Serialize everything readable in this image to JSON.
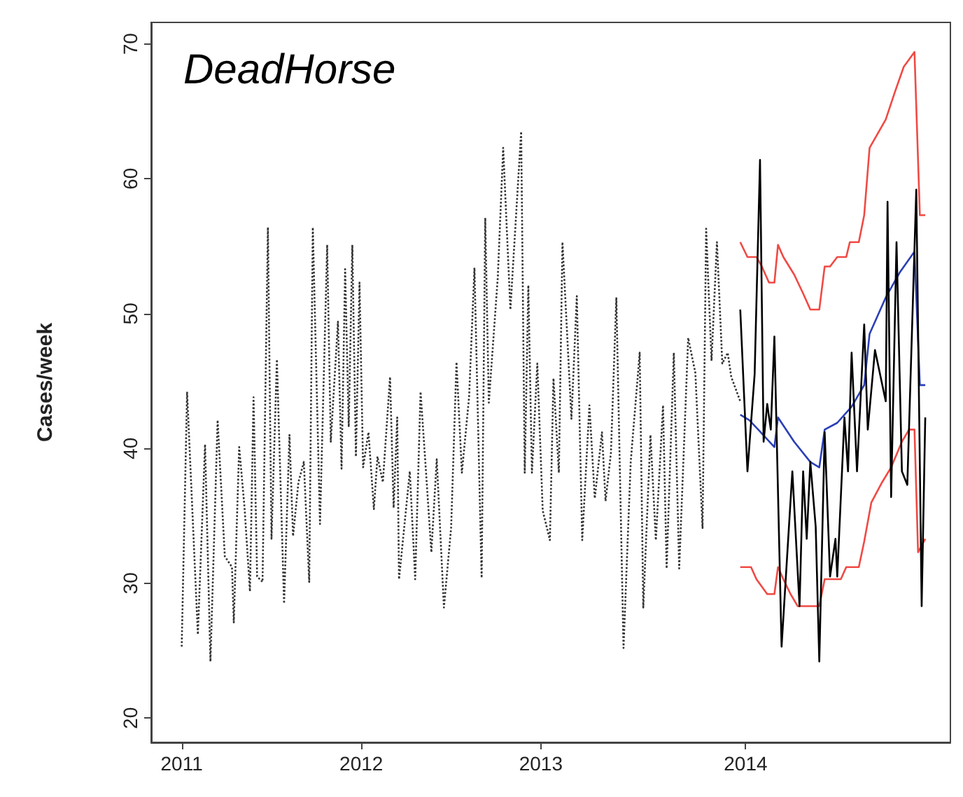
{
  "chart_data": {
    "type": "line",
    "title": "DeadHorse",
    "ylabel": "Cases/week",
    "xlim": [
      2010.83,
      2015.28
    ],
    "ylim": [
      18.2,
      71.6
    ],
    "xticks": [
      {
        "value": 2011,
        "label": "2011"
      },
      {
        "value": 2012,
        "label": "2012"
      },
      {
        "value": 2013,
        "label": "2013"
      },
      {
        "value": 2014.14,
        "label": "2014"
      }
    ],
    "yticks": [
      20,
      30,
      40,
      50,
      60,
      70
    ],
    "series": [
      {
        "color": "#333333",
        "line_style": "dotted",
        "x": [
          2011.0,
          2011.03,
          2011.09,
          2011.13,
          2011.16,
          2011.2,
          2011.24,
          2011.28,
          2011.29,
          2011.32,
          2011.35,
          2011.38,
          2011.4,
          2011.42,
          2011.45,
          2011.48,
          2011.5,
          2011.53,
          2011.57,
          2011.6,
          2011.62,
          2011.65,
          2011.68,
          2011.71,
          2011.73,
          2011.77,
          2011.81,
          2011.83,
          2011.87,
          2011.89,
          2011.91,
          2011.93,
          2011.95,
          2011.97,
          2011.99,
          2012.01,
          2012.04,
          2012.07,
          2012.09,
          2012.12,
          2012.16,
          2012.18,
          2012.2,
          2012.21,
          2012.27,
          2012.3,
          2012.33,
          2012.36,
          2012.39,
          2012.42,
          2012.46,
          2012.5,
          2012.53,
          2012.56,
          2012.6,
          2012.63,
          2012.67,
          2012.69,
          2012.71,
          2012.76,
          2012.79,
          2012.83,
          2012.89,
          2012.91,
          2012.93,
          2012.95,
          2012.98,
          2013.01,
          2013.05,
          2013.07,
          2013.1,
          2013.12,
          2013.17,
          2013.2,
          2013.23,
          2013.27,
          2013.3,
          2013.34,
          2013.36,
          2013.39,
          2013.42,
          2013.46,
          2013.5,
          2013.55,
          2013.57,
          2013.61,
          2013.64,
          2013.68,
          2013.7,
          2013.74,
          2013.77,
          2013.82,
          2013.86,
          2013.9,
          2013.92,
          2013.95,
          2013.98,
          2014.01,
          2014.04,
          2014.06,
          2014.11
        ],
        "values": [
          25.3,
          44.2,
          26.2,
          40.3,
          24.2,
          42.1,
          32,
          31.2,
          27.1,
          40.1,
          35.6,
          29.4,
          43.8,
          30.5,
          30.1,
          56.4,
          33.3,
          46.6,
          28.5,
          41,
          33.5,
          37.5,
          39,
          30.1,
          56.4,
          34.4,
          55.1,
          40.5,
          49.4,
          38.5,
          53.3,
          41.6,
          55.1,
          39.4,
          52.3,
          38.6,
          41.2,
          35.5,
          39.4,
          37.5,
          45.3,
          35.6,
          42.3,
          30.3,
          38.3,
          30.3,
          44.2,
          38.3,
          32.3,
          39.2,
          28.2,
          34.1,
          46.4,
          38.2,
          43.8,
          53.4,
          30.4,
          57.1,
          43.4,
          52.7,
          62.3,
          50.3,
          63.5,
          38.2,
          52.1,
          38.2,
          46.3,
          35.4,
          33.2,
          45.2,
          38.2,
          55.3,
          42.2,
          51.3,
          33.2,
          43.2,
          36.3,
          41.2,
          36.1,
          39.7,
          51.2,
          25.2,
          39,
          47.1,
          28.2,
          41,
          33.2,
          43.2,
          31.1,
          47.1,
          31.1,
          48.2,
          45.6,
          34.1,
          56.3,
          46.5,
          55.3,
          46.3,
          47.1,
          45.3,
          43.5
        ]
      },
      {
        "color": "#f04a44",
        "x": [
          2014.11,
          2014.15,
          2014.2,
          2014.23,
          2014.27,
          2014.3,
          2014.32,
          2014.35,
          2014.41,
          2014.46,
          2014.5,
          2014.55,
          2014.58,
          2014.61,
          2014.65,
          2014.7,
          2014.72,
          2014.77,
          2014.8,
          2014.83,
          2014.92,
          2014.97,
          2015.02,
          2015.08,
          2015.11,
          2015.14
        ],
        "values": [
          55.3,
          54.2,
          54.2,
          53.5,
          52.3,
          52.3,
          55.1,
          54.2,
          52.9,
          51.5,
          50.3,
          50.3,
          53.5,
          53.5,
          54.2,
          54.2,
          55.3,
          55.3,
          57.3,
          62.3,
          64.4,
          66.4,
          68.3,
          69.4,
          57.3,
          57.3
        ]
      },
      {
        "color": "#f04a44",
        "x": [
          2014.11,
          2014.17,
          2014.2,
          2014.26,
          2014.3,
          2014.32,
          2014.35,
          2014.39,
          2014.43,
          2014.55,
          2014.58,
          2014.67,
          2014.7,
          2014.77,
          2014.8,
          2014.84,
          2014.9,
          2014.95,
          2015.01,
          2015.05,
          2015.08,
          2015.1,
          2015.14
        ],
        "values": [
          31.2,
          31.2,
          30.3,
          29.2,
          29.2,
          31.2,
          30.3,
          29.2,
          28.3,
          28.3,
          30.3,
          30.3,
          31.2,
          31.2,
          33.1,
          36,
          37.5,
          38.6,
          40.5,
          41.4,
          41.4,
          32.3,
          33.3
        ]
      },
      {
        "color": "#2b3fb5",
        "x": [
          2014.11,
          2014.16,
          2014.21,
          2014.3,
          2014.32,
          2014.41,
          2014.5,
          2014.55,
          2014.58,
          2014.65,
          2014.73,
          2014.8,
          2014.83,
          2014.92,
          2015.0,
          2015.08,
          2015.11,
          2015.14
        ],
        "values": [
          42.5,
          42.1,
          41.4,
          40.1,
          42.3,
          40.5,
          39,
          38.6,
          41.4,
          41.9,
          43.1,
          44.7,
          48.5,
          51.2,
          53.1,
          54.6,
          44.7,
          44.7
        ]
      },
      {
        "color": "#000000",
        "x": [
          2014.11,
          2014.15,
          2014.19,
          2014.22,
          2014.24,
          2014.26,
          2014.28,
          2014.3,
          2014.34,
          2014.4,
          2014.44,
          2014.46,
          2014.48,
          2014.5,
          2014.53,
          2014.55,
          2014.58,
          2014.61,
          2014.64,
          2014.65,
          2014.69,
          2014.71,
          2014.73,
          2014.76,
          2014.8,
          2014.82,
          2014.86,
          2014.92,
          2014.93,
          2014.95,
          2014.98,
          2015.01,
          2015.04,
          2015.09,
          2015.12,
          2015.14
        ],
        "values": [
          50.3,
          38.3,
          45.5,
          61.4,
          40.5,
          43.3,
          41.4,
          48.3,
          25.3,
          38.3,
          28.3,
          38.3,
          33.3,
          39,
          34.2,
          24.2,
          41.2,
          30.5,
          33.3,
          30.5,
          42.3,
          38.3,
          47.1,
          38.3,
          49.2,
          41.4,
          47.3,
          43.5,
          58.3,
          36.4,
          55.3,
          38.3,
          37.3,
          59.2,
          28.3,
          42.3
        ]
      }
    ]
  }
}
